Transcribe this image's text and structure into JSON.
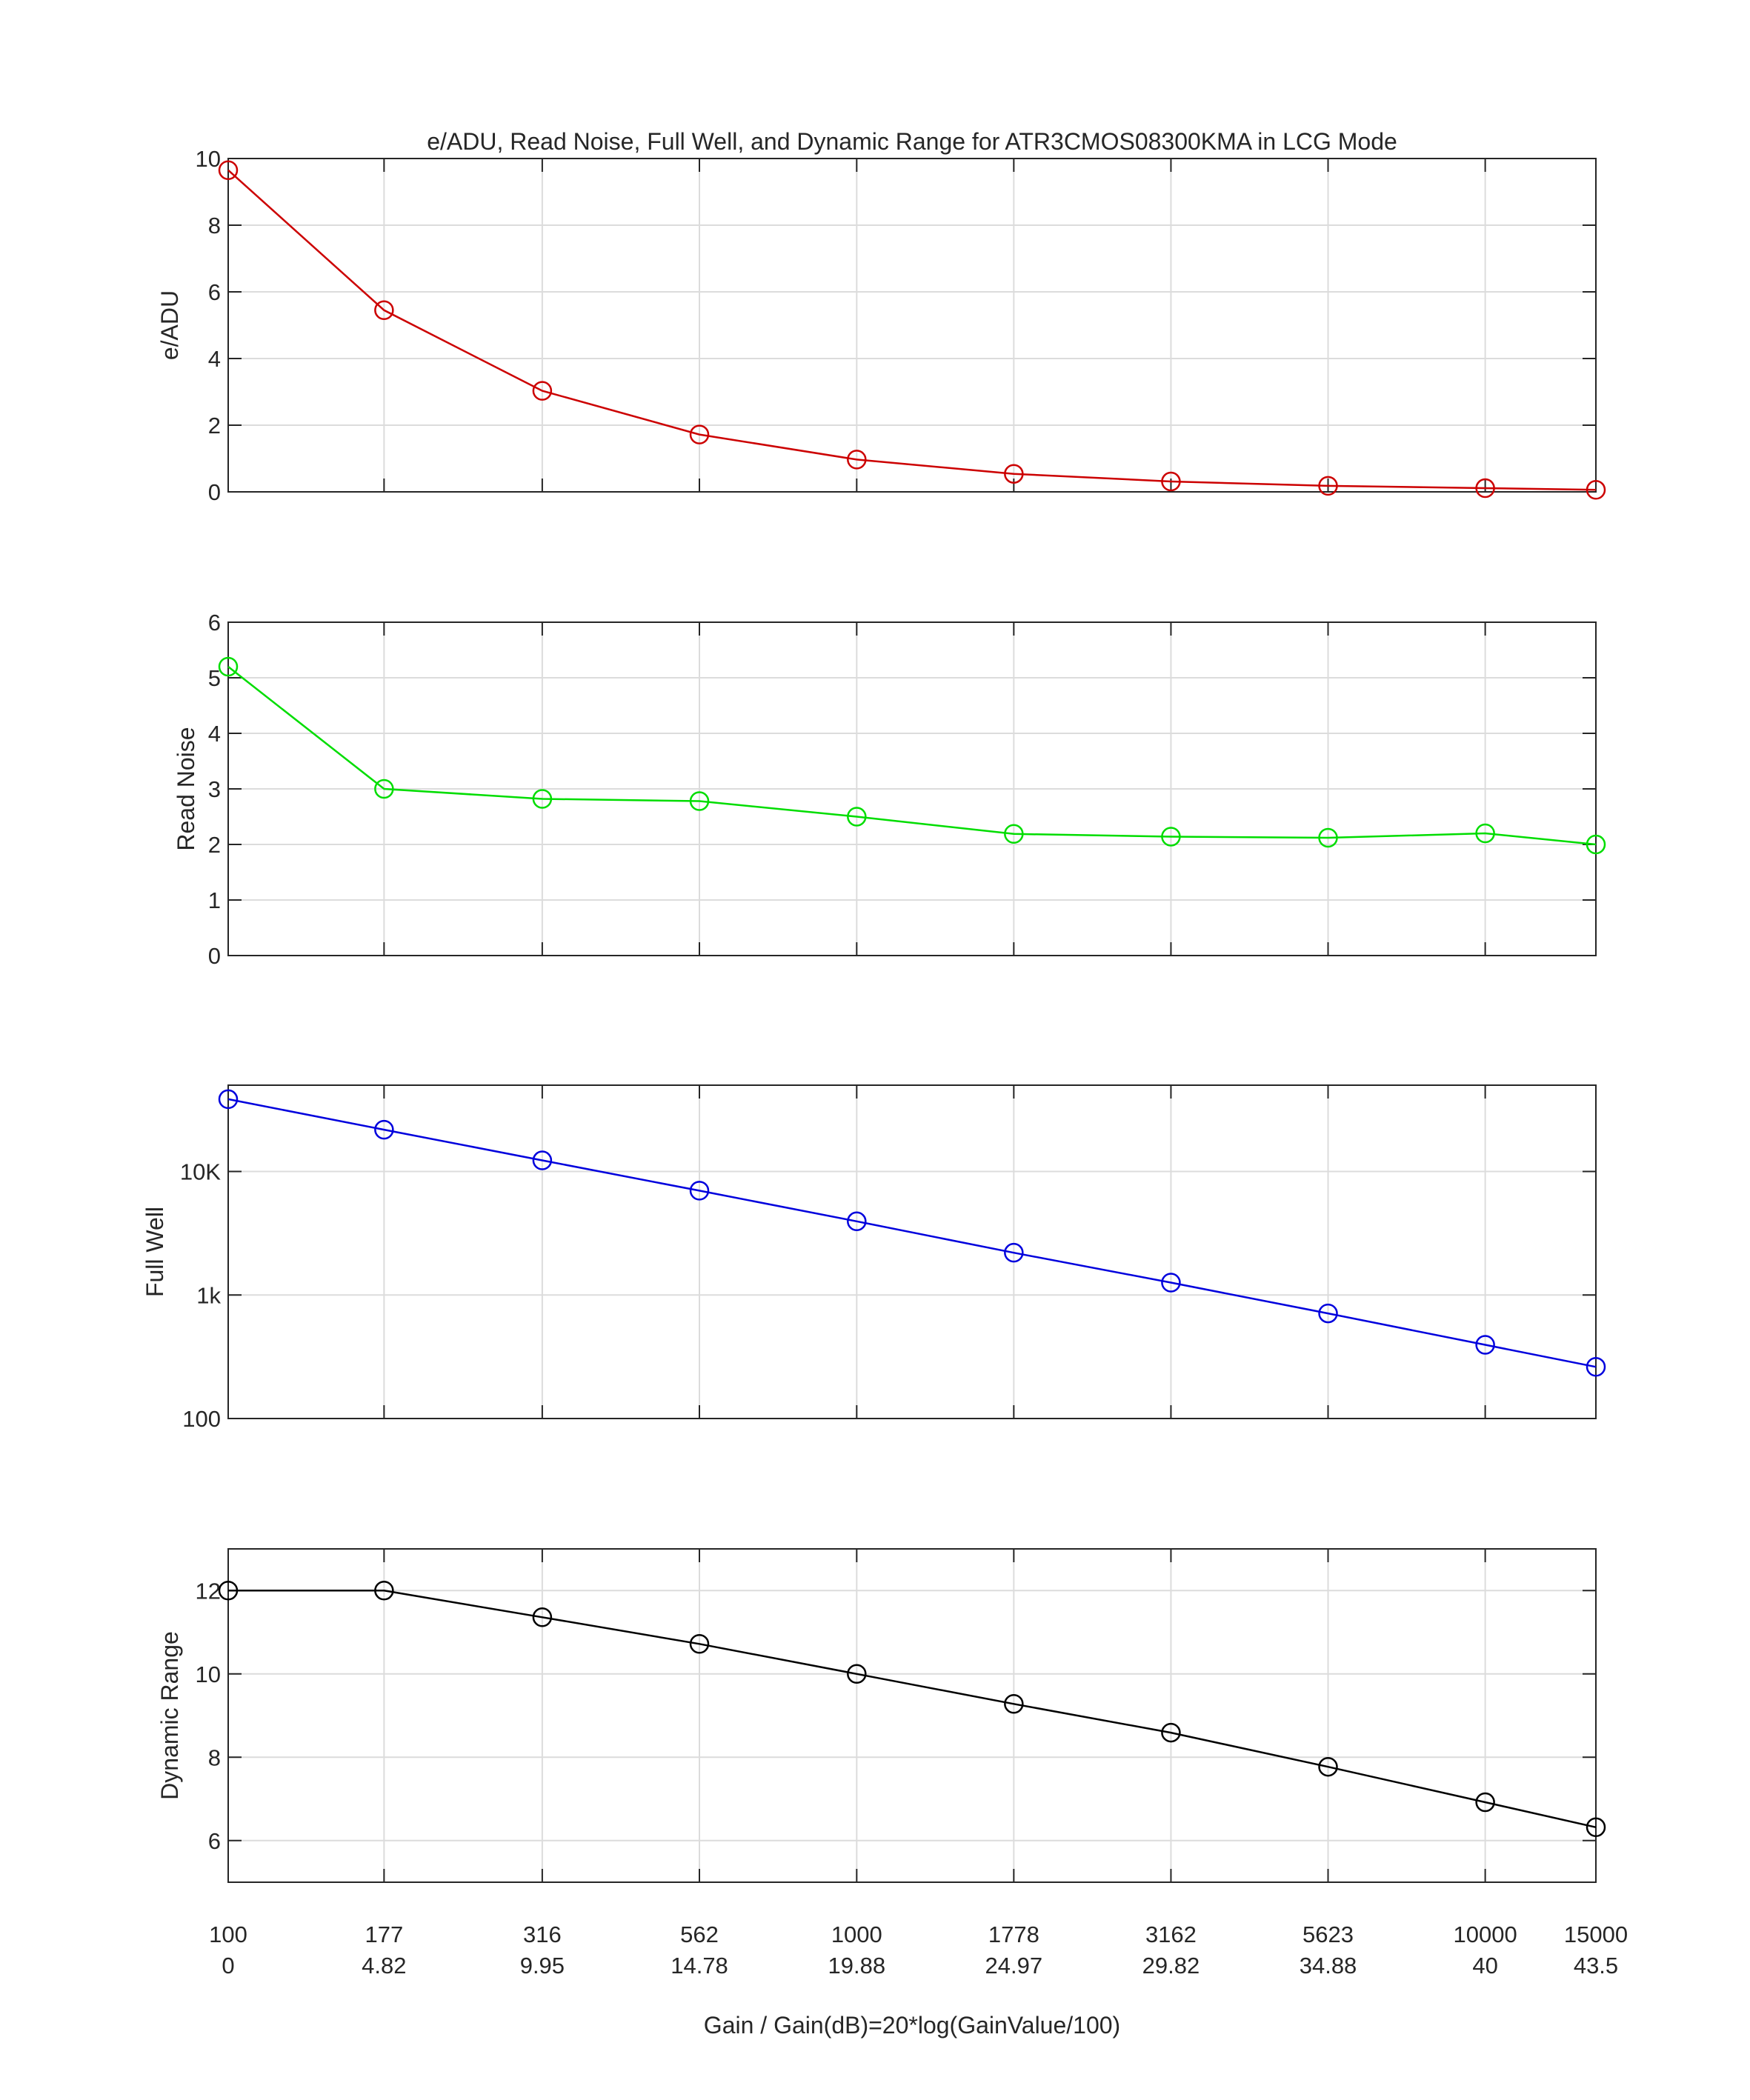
{
  "chart_data": {
    "title": "e/ADU, Read Noise, Full Well, and Dynamic Range for ATR3CMOS08300KMA in LCG Mode",
    "xlabel": "Gain / Gain(dB)=20*log(GainValue/100)",
    "x_tick_labels_gain": [
      "100",
      "177",
      "316",
      "562",
      "1000",
      "1778",
      "3162",
      "5623",
      "10000",
      "15000"
    ],
    "x_tick_labels_db": [
      "0",
      "4.82",
      "9.95",
      "14.78",
      "19.88",
      "24.97",
      "29.82",
      "34.88",
      "40",
      "43.5"
    ],
    "x_scale": "log",
    "grid": true,
    "panels": [
      {
        "type": "line",
        "ylabel": "e/ADU",
        "color": "#cc0000",
        "marker": "circle",
        "yscale": "linear",
        "ylim": [
          0,
          10
        ],
        "yticks": [
          0,
          2,
          4,
          6,
          8,
          10
        ],
        "ytick_labels": [
          "0",
          "2",
          "4",
          "6",
          "8",
          "10"
        ],
        "x": [
          100,
          177,
          316,
          562,
          1000,
          1778,
          3162,
          5623,
          10000,
          15000
        ],
        "values": [
          9.65,
          5.45,
          3.03,
          1.72,
          0.97,
          0.54,
          0.31,
          0.18,
          0.11,
          0.06
        ]
      },
      {
        "type": "line",
        "ylabel": "Read Noise",
        "color": "#00dd00",
        "marker": "circle",
        "yscale": "linear",
        "ylim": [
          0,
          6
        ],
        "yticks": [
          0,
          1,
          2,
          3,
          4,
          5,
          6
        ],
        "ytick_labels": [
          "0",
          "1",
          "2",
          "3",
          "4",
          "5",
          "6"
        ],
        "x": [
          100,
          177,
          316,
          562,
          1000,
          1778,
          3162,
          5623,
          10000,
          15000
        ],
        "values": [
          5.2,
          3.0,
          2.82,
          2.78,
          2.5,
          2.19,
          2.14,
          2.12,
          2.2,
          2.0
        ]
      },
      {
        "type": "line",
        "ylabel": "Full Well",
        "color": "#0000dd",
        "marker": "circle",
        "yscale": "log",
        "ylim": [
          100,
          50000
        ],
        "yticks": [
          100,
          1000,
          10000
        ],
        "ytick_labels": [
          "100",
          "1k",
          "10K"
        ],
        "x": [
          100,
          177,
          316,
          562,
          1000,
          1778,
          3162,
          5623,
          10000,
          15000
        ],
        "values": [
          38500,
          21800,
          12300,
          7000,
          3950,
          2200,
          1260,
          710,
          395,
          262
        ]
      },
      {
        "type": "line",
        "ylabel": "Dynamic Range",
        "color": "#000000",
        "marker": "circle",
        "yscale": "linear",
        "ylim": [
          5,
          13
        ],
        "yticks": [
          6,
          8,
          10,
          12
        ],
        "ytick_labels": [
          "6",
          "8",
          "10",
          "12"
        ],
        "x": [
          100,
          177,
          316,
          562,
          1000,
          1778,
          3162,
          5623,
          10000,
          15000
        ],
        "values": [
          12.0,
          12.0,
          11.36,
          10.72,
          10.0,
          9.28,
          8.59,
          7.77,
          6.92,
          6.32
        ]
      }
    ]
  }
}
